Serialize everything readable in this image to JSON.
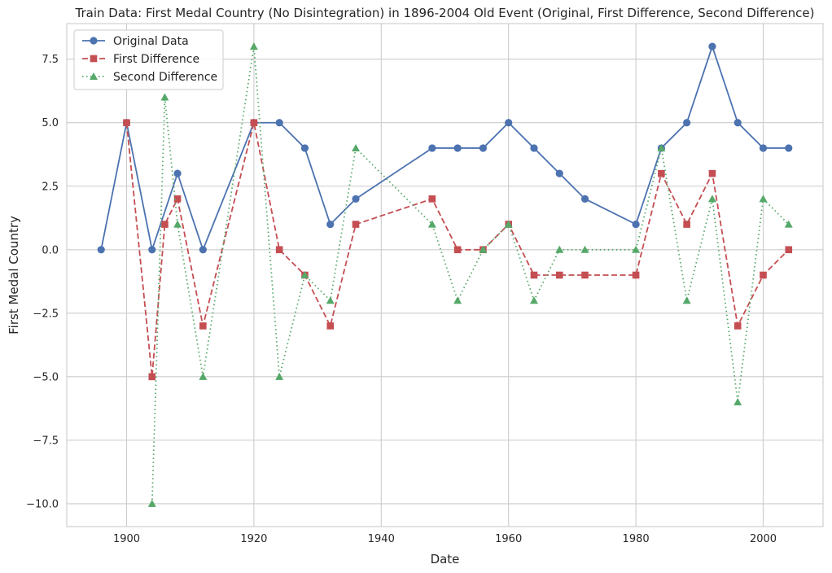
{
  "chart_data": {
    "type": "line",
    "title": "Train Data: First Medal Country (No Disintegration) in 1896-2004 Old Event (Original, First Difference, Second Difference)",
    "xlabel": "Date",
    "ylabel": "First Medal Country",
    "xlim": [
      1890.6,
      2009.4
    ],
    "ylim": [
      -10.9,
      8.9
    ],
    "xticks": [
      1900,
      1920,
      1940,
      1960,
      1980,
      2000
    ],
    "xtick_labels": [
      "1900",
      "1920",
      "1940",
      "1960",
      "1980",
      "2000"
    ],
    "yticks": [
      -10.0,
      -7.5,
      -5.0,
      -2.5,
      0.0,
      2.5,
      5.0,
      7.5
    ],
    "ytick_labels": [
      "−10.0",
      "−7.5",
      "−5.0",
      "−2.5",
      "0.0",
      "2.5",
      "5.0",
      "7.5"
    ],
    "grid": true,
    "legend_position": "top-left",
    "series": [
      {
        "name": "Original Data",
        "color": "#4c72b0",
        "line_style": "solid",
        "marker": "circle",
        "x": [
          1896,
          1900,
          1904,
          1908,
          1912,
          1920,
          1924,
          1928,
          1932,
          1936,
          1948,
          1952,
          1956,
          1960,
          1964,
          1968,
          1972,
          1980,
          1984,
          1988,
          1992,
          1996,
          2000,
          2004
        ],
        "y": [
          0,
          5,
          0,
          3,
          0,
          5,
          5,
          4,
          1,
          2,
          4,
          4,
          4,
          5,
          4,
          3,
          2,
          1,
          4,
          5,
          8,
          5,
          4,
          4
        ]
      },
      {
        "name": "First Difference",
        "color": "#c44e52",
        "line_style": "dashed",
        "marker": "square",
        "x": [
          1900,
          1904,
          1906,
          1908,
          1912,
          1920,
          1924,
          1928,
          1932,
          1936,
          1948,
          1952,
          1956,
          1960,
          1964,
          1968,
          1972,
          1980,
          1984,
          1988,
          1992,
          1996,
          2000,
          2004
        ],
        "y": [
          5,
          -5,
          1,
          2,
          -3,
          5,
          0,
          -1,
          -3,
          1,
          2,
          0,
          0,
          1,
          -1,
          -1,
          -1,
          -1,
          3,
          1,
          3,
          -3,
          -1,
          0
        ]
      },
      {
        "name": "Second Difference",
        "color": "#55a868",
        "line_style": "dotted",
        "marker": "triangle",
        "x": [
          1904,
          1906,
          1908,
          1912,
          1920,
          1924,
          1928,
          1932,
          1936,
          1948,
          1952,
          1956,
          1960,
          1964,
          1968,
          1972,
          1980,
          1984,
          1988,
          1992,
          1996,
          2000,
          2004
        ],
        "y": [
          -10,
          6,
          1,
          -5,
          8,
          -5,
          -1,
          -2,
          4,
          1,
          -2,
          0,
          1,
          -2,
          0,
          0,
          0,
          4,
          -2,
          2,
          -6,
          2,
          1
        ]
      }
    ]
  }
}
